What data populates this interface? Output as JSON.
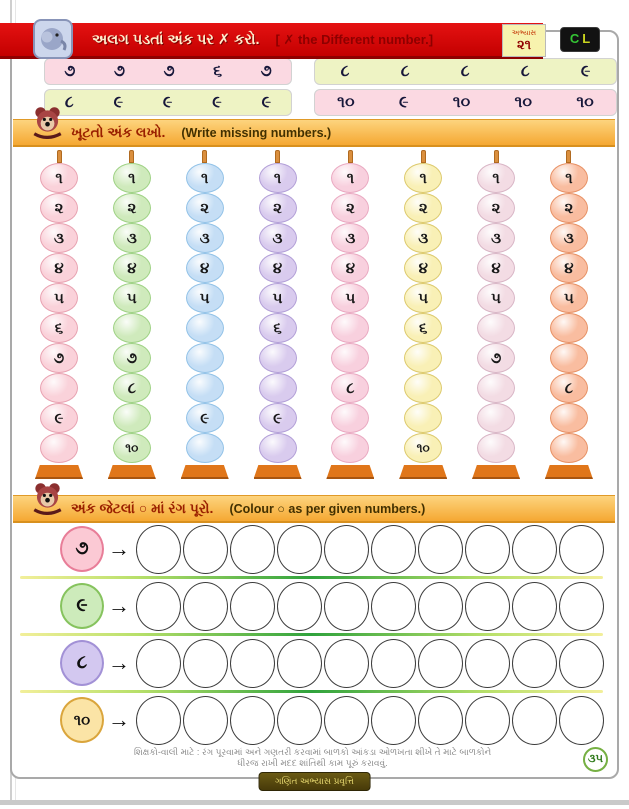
{
  "header": {
    "title_gujarati": "અલગ પડતાં અંક પર ✗ કરો.",
    "title_english": "[ ✗ the Different number.]",
    "badge_label": "અભ્યાસ",
    "badge_number": "૨૧",
    "logo_c": "C",
    "logo_l": "L"
  },
  "grids": [
    {
      "rows": [
        {
          "bg": "pink",
          "values": [
            "૭",
            "૭",
            "૭",
            "૬",
            "૭"
          ]
        },
        {
          "bg": "green",
          "values": [
            "૮",
            "૯",
            "૯",
            "૯",
            "૯"
          ]
        }
      ]
    },
    {
      "rows": [
        {
          "bg": "green",
          "values": [
            "૮",
            "૮",
            "૮",
            "૮",
            "૯"
          ]
        },
        {
          "bg": "pink",
          "values": [
            "૧૦",
            "૯",
            "૧૦",
            "૧૦",
            "૧૦"
          ]
        }
      ]
    }
  ],
  "missing_section": {
    "title_gujarati": "ખૂટતો અંક લખો.",
    "title_english": "(Write missing numbers.)"
  },
  "abacus_columns": [
    {
      "color": "pink",
      "beads": [
        "૧",
        "૨",
        "૩",
        "૪",
        "૫",
        "૬",
        "૭",
        "",
        "૯",
        ""
      ]
    },
    {
      "color": "green",
      "beads": [
        "૧",
        "૨",
        "૩",
        "૪",
        "૫",
        "",
        "૭",
        "૮",
        "",
        "૧૦"
      ]
    },
    {
      "color": "blue",
      "beads": [
        "૧",
        "૨",
        "૩",
        "૪",
        "૫",
        "",
        "",
        "",
        "૯",
        ""
      ]
    },
    {
      "color": "purple",
      "beads": [
        "૧",
        "૨",
        "૩",
        "૪",
        "૫",
        "૬",
        "",
        "",
        "૯",
        ""
      ]
    },
    {
      "color": "rose",
      "beads": [
        "૧",
        "૨",
        "૩",
        "૪",
        "૫",
        "",
        "",
        "૮",
        "",
        ""
      ]
    },
    {
      "color": "yellow",
      "beads": [
        "૧",
        "૨",
        "૩",
        "૪",
        "૫",
        "૬",
        "",
        "",
        "",
        "૧૦"
      ]
    },
    {
      "color": "blush",
      "beads": [
        "૧",
        "૨",
        "૩",
        "૪",
        "૫",
        "",
        "૭",
        "",
        "",
        ""
      ]
    },
    {
      "color": "salmon",
      "beads": [
        "૧",
        "૨",
        "૩",
        "૪",
        "૫",
        "",
        "",
        "૮",
        "",
        ""
      ]
    }
  ],
  "colour_section": {
    "title_gujarati": "અંક જેટલાં ○ માં રંગ પૂરો.",
    "title_english": "(Colour ○ as per given numbers.)",
    "arrow_glyph": "→"
  },
  "colour_rows": [
    {
      "number": "૭",
      "color": "pink",
      "circle_count": 10
    },
    {
      "number": "૯",
      "color": "green",
      "circle_count": 10
    },
    {
      "number": "૮",
      "color": "purple",
      "circle_count": 10
    },
    {
      "number": "૧૦",
      "color": "yellow",
      "circle_count": 10
    }
  ],
  "footer": {
    "note_line1": "શિક્ષકો-વાલી માટે : રંગ પૂરવામાં અને ગણતરી કરવામાં બાળકો આંકડા ઓળખતા શીખે તે માટે બાળકોને",
    "note_line2": "ધીરજ રાખી મદદ શાંતિથી કામ પૂરું કરાવવું.",
    "page_number": "૩૫",
    "banner_text": "ગણિત અભ્યાસ પ્રવૃત્તિ"
  },
  "colors": {
    "banner_red": "#d40000",
    "section_bar_orange": "#f6ae3e",
    "grid_row_pink": "#fbd9e2",
    "grid_row_green": "#eef3c4",
    "bead_palette": {
      "pink": {
        "fill": "#fad2da",
        "border": "#e9a3b2"
      },
      "green": {
        "fill": "#cfeabc",
        "border": "#9fd285"
      },
      "blue": {
        "fill": "#c5def5",
        "border": "#93c3e8"
      },
      "purple": {
        "fill": "#d9cbee",
        "border": "#b3a0d8"
      },
      "rose": {
        "fill": "#f8d0de",
        "border": "#eaaac2"
      },
      "yellow": {
        "fill": "#f9f0b6",
        "border": "#ddca6e"
      },
      "blush": {
        "fill": "#f3dce4",
        "border": "#d9b6c6"
      },
      "salmon": {
        "fill": "#f9bda0",
        "border": "#e89266"
      }
    },
    "circle_palette": {
      "pink": {
        "fill": "#fbc9d4",
        "border": "#e87d98"
      },
      "green": {
        "fill": "#cdebbb",
        "border": "#86c35e"
      },
      "purple": {
        "fill": "#d3c8f0",
        "border": "#a291d6"
      },
      "yellow": {
        "fill": "#fbe4a6",
        "border": "#daa53c"
      }
    }
  }
}
